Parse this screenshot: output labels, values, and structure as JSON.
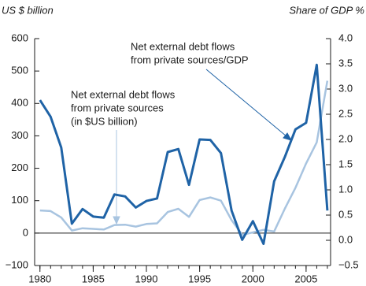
{
  "chart_data": {
    "type": "line",
    "y_label": "US $ billion",
    "y2_label": "Share of GDP %",
    "annotations": [
      {
        "lines": [
          "Net external debt flows",
          "from private sources/GDP"
        ]
      },
      {
        "lines": [
          "Net external debt flows",
          "from private sources",
          "(in $US billion)"
        ]
      }
    ],
    "x": [
      1980,
      1981,
      1982,
      1983,
      1984,
      1985,
      1986,
      1987,
      1988,
      1989,
      1990,
      1991,
      1992,
      1993,
      1994,
      1995,
      1996,
      1997,
      1998,
      1999,
      2000,
      2001,
      2002,
      2003,
      2004,
      2005,
      2006,
      2007
    ],
    "xlim": [
      1979.5,
      2007.3
    ],
    "xticks": [
      1980,
      1985,
      1990,
      1995,
      2000,
      2005
    ],
    "ylim": [
      -100,
      600
    ],
    "yticks": [
      {
        "value": -100,
        "label": "−100"
      },
      0,
      100,
      200,
      300,
      400,
      500,
      600
    ],
    "y2lim": [
      -0.5,
      4.0
    ],
    "y2ticks": [
      {
        "value": -0.5,
        "label": "−0.5"
      },
      {
        "value": 0,
        "label": "0.0"
      },
      0.5,
      {
        "value": 1,
        "label": "1.0"
      },
      1.5,
      {
        "value": 2,
        "label": "2.0"
      },
      2.5,
      {
        "value": 3,
        "label": "3.0"
      },
      3.5,
      {
        "value": 4,
        "label": "4.0"
      }
    ],
    "series": [
      {
        "name": "Net external debt flows from private sources/GDP",
        "color": "#1f63a6",
        "axis": "y2",
        "values": [
          2.78,
          2.45,
          1.84,
          0.33,
          0.62,
          0.47,
          0.45,
          0.91,
          0.87,
          0.65,
          0.78,
          0.83,
          1.75,
          1.81,
          1.1,
          2.0,
          1.99,
          1.73,
          0.59,
          0.01,
          0.38,
          -0.07,
          1.17,
          1.65,
          2.2,
          2.33,
          3.48,
          0.59
        ]
      },
      {
        "name": "Net external debt flows from private sources (in $US billion)",
        "color": "#a8c4e0",
        "axis": "y",
        "values": [
          70,
          68,
          48,
          8,
          15,
          13,
          11,
          25,
          26,
          20,
          28,
          30,
          65,
          75,
          50,
          102,
          110,
          100,
          40,
          -5,
          2,
          10,
          5,
          75,
          140,
          215,
          280,
          470
        ]
      }
    ]
  }
}
